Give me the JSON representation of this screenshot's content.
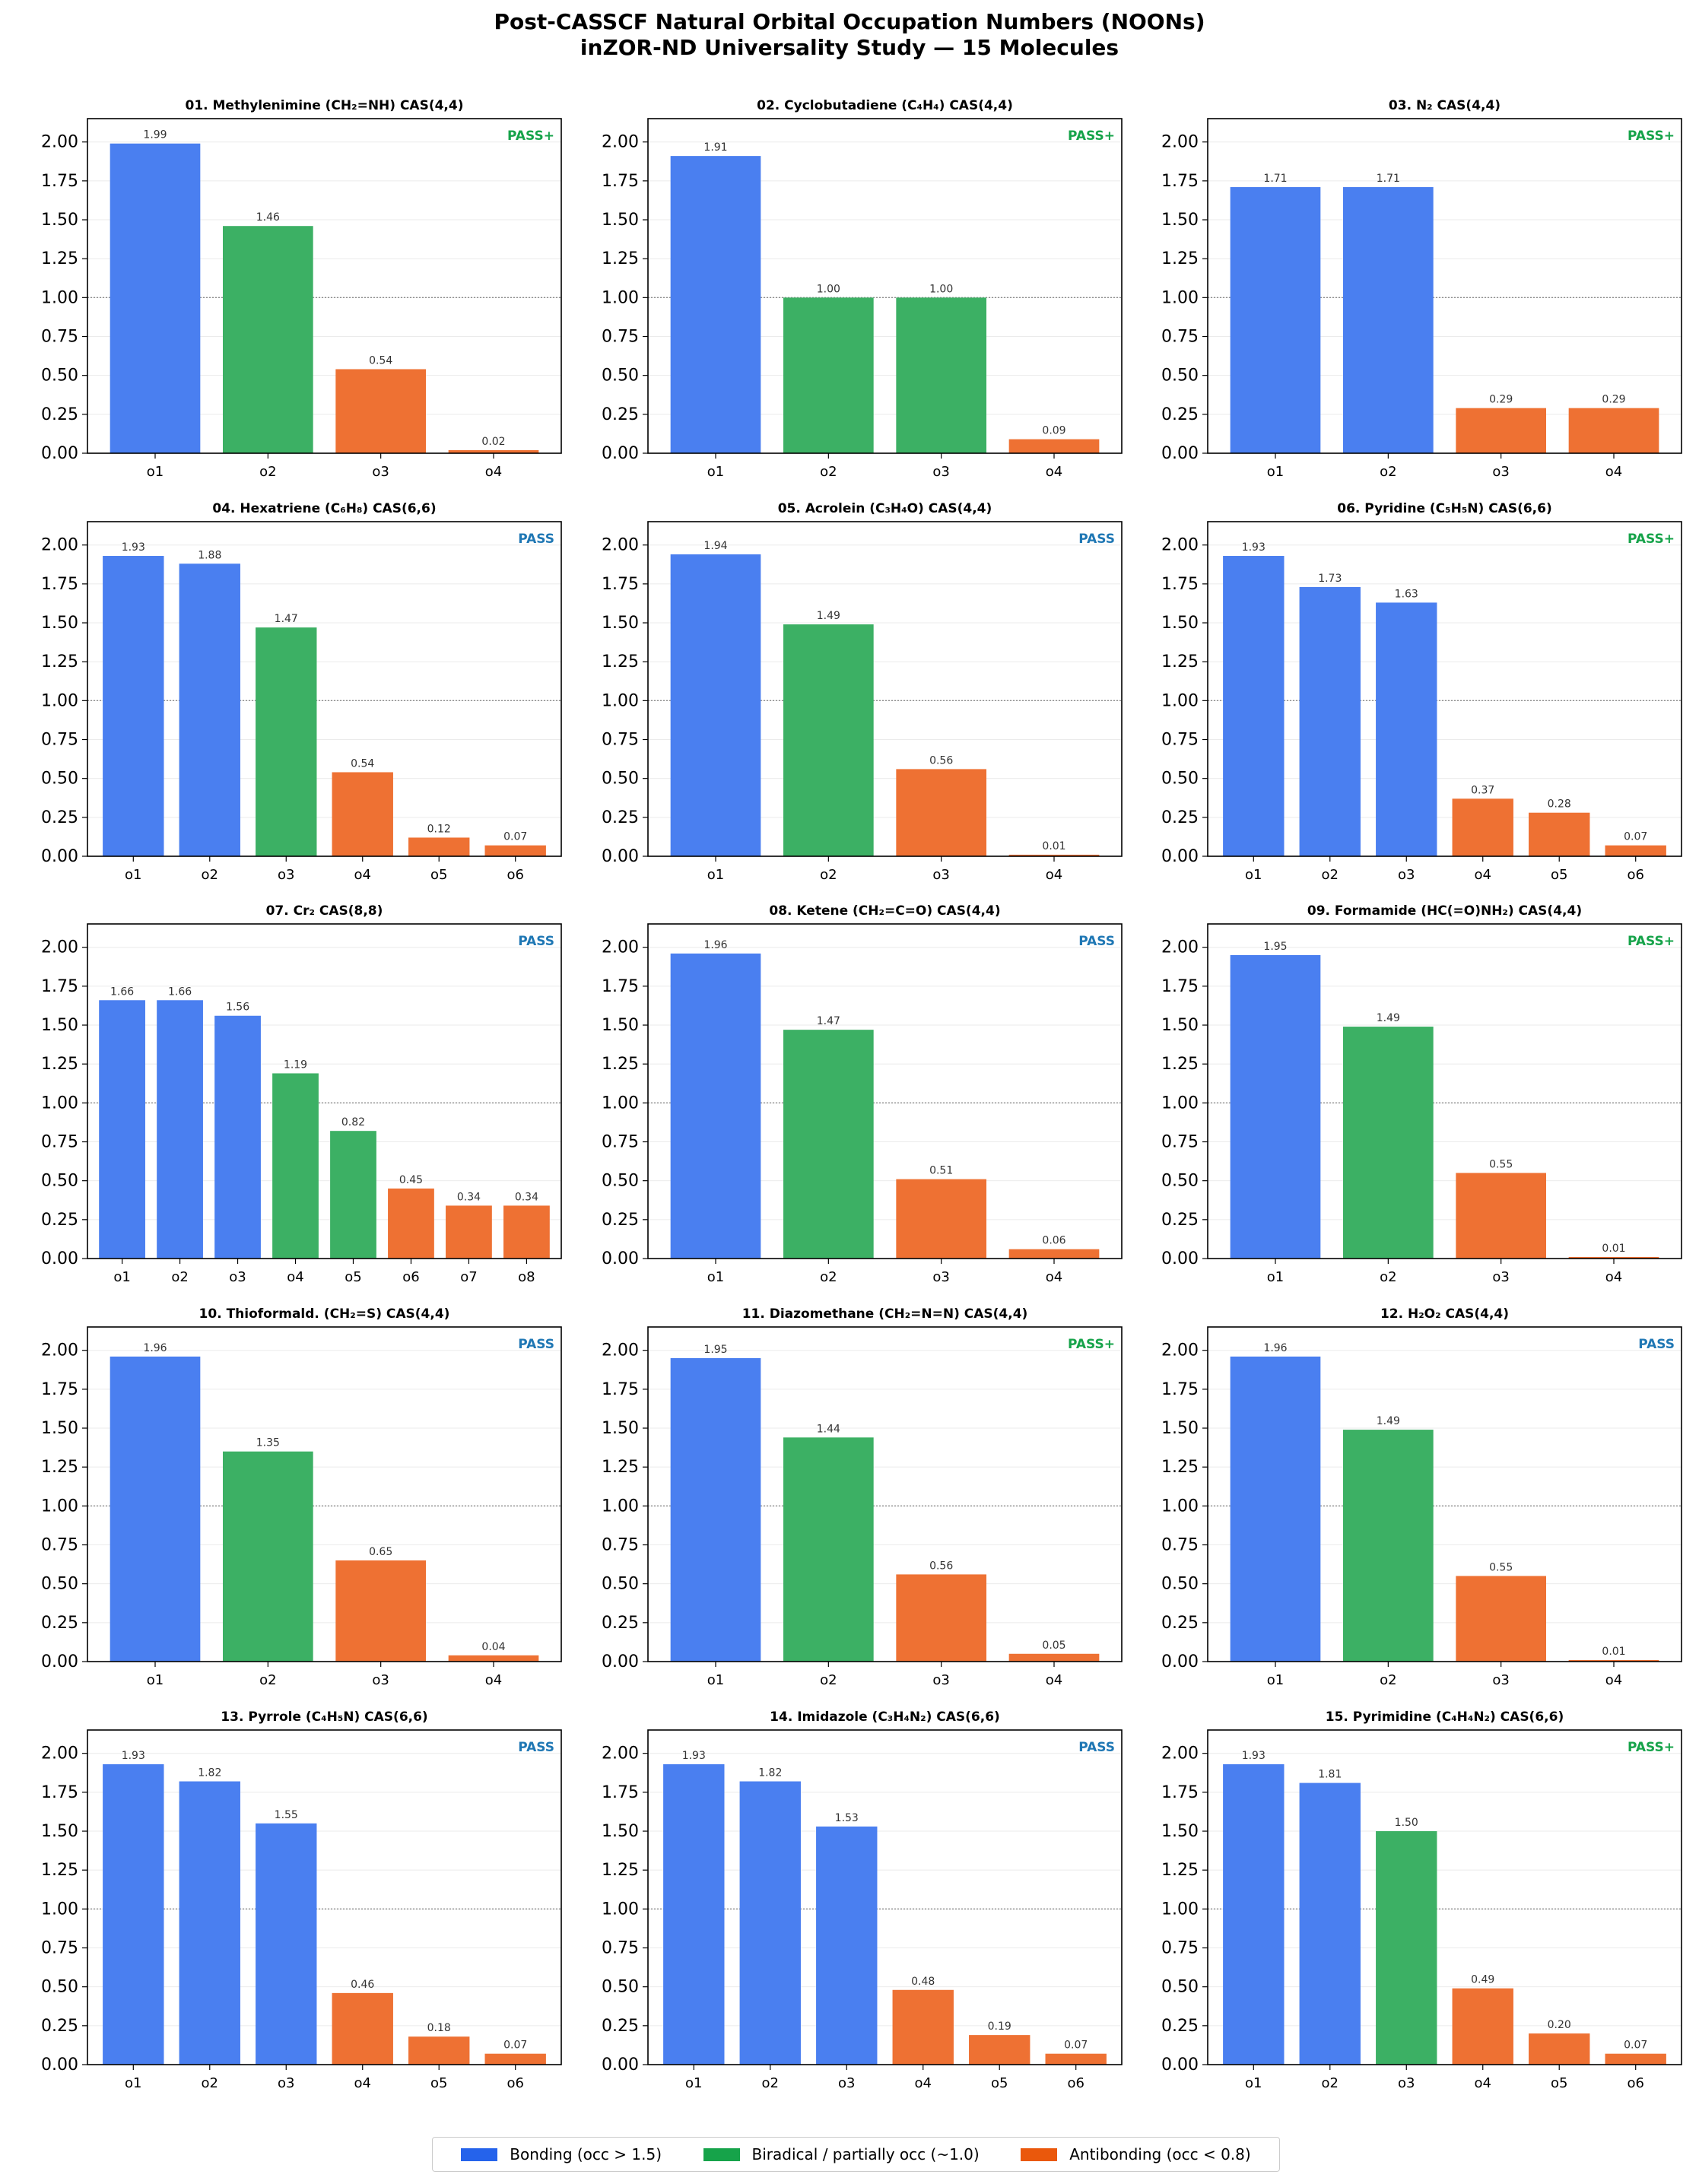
{
  "title_line1": "Post-CASSCF Natural Orbital Occupation Numbers (NOONs)",
  "title_line2": "inZOR-ND Universality Study — 15 Molecules",
  "colors": {
    "bonding": "#2563eb",
    "biradical": "#16a34a",
    "antibonding": "#ea580c",
    "pass": "#1f77b4",
    "pass_plus": "#16a34a"
  },
  "legend": [
    {
      "label": "Bonding (occ > 1.5)",
      "color": "#2563eb"
    },
    {
      "label": "Biradical / partially occ (~1.0)",
      "color": "#16a34a"
    },
    {
      "label": "Antibonding (occ < 0.8)",
      "color": "#ea580c"
    }
  ],
  "chart_data": [
    {
      "type": "bar",
      "title": "01. Methylenimine (CH₂=NH) CAS(4,4)",
      "badge": "PASS+",
      "categories": [
        "o1",
        "o2",
        "o3",
        "o4"
      ],
      "values": [
        1.99,
        1.46,
        0.54,
        0.02
      ],
      "classes": [
        "bonding",
        "biradical",
        "antibonding",
        "antibonding"
      ],
      "labels": [
        "1.99",
        "1.46",
        "0.54",
        "0.02"
      ],
      "ylim": [
        0,
        2.15
      ],
      "yticks": [
        "0.00",
        "0.25",
        "0.50",
        "0.75",
        "1.00",
        "1.25",
        "1.50",
        "1.75",
        "2.00"
      ],
      "reference_line": 1.0
    },
    {
      "type": "bar",
      "title": "02. Cyclobutadiene (C₄H₄) CAS(4,4)",
      "badge": "PASS+",
      "categories": [
        "o1",
        "o2",
        "o3",
        "o4"
      ],
      "values": [
        1.91,
        1.0,
        1.0,
        0.09
      ],
      "classes": [
        "bonding",
        "biradical",
        "biradical",
        "antibonding"
      ],
      "labels": [
        "1.91",
        "1.00",
        "1.00",
        "0.09"
      ],
      "ylim": [
        0,
        2.15
      ],
      "yticks": [
        "0.00",
        "0.25",
        "0.50",
        "0.75",
        "1.00",
        "1.25",
        "1.50",
        "1.75",
        "2.00"
      ],
      "reference_line": 1.0
    },
    {
      "type": "bar",
      "title": "03. N₂ CAS(4,4)",
      "badge": "PASS+",
      "categories": [
        "o1",
        "o2",
        "o3",
        "o4"
      ],
      "values": [
        1.71,
        1.71,
        0.29,
        0.29
      ],
      "classes": [
        "bonding",
        "bonding",
        "antibonding",
        "antibonding"
      ],
      "labels": [
        "1.71",
        "1.71",
        "0.29",
        "0.29"
      ],
      "ylim": [
        0,
        2.15
      ],
      "yticks": [
        "0.00",
        "0.25",
        "0.50",
        "0.75",
        "1.00",
        "1.25",
        "1.50",
        "1.75",
        "2.00"
      ],
      "reference_line": 1.0
    },
    {
      "type": "bar",
      "title": "04. Hexatriene (C₆H₈) CAS(6,6)",
      "badge": "PASS",
      "categories": [
        "o1",
        "o2",
        "o3",
        "o4",
        "o5",
        "o6"
      ],
      "values": [
        1.93,
        1.88,
        1.47,
        0.54,
        0.12,
        0.07
      ],
      "classes": [
        "bonding",
        "bonding",
        "biradical",
        "antibonding",
        "antibonding",
        "antibonding"
      ],
      "labels": [
        "1.93",
        "1.88",
        "1.47",
        "0.54",
        "0.12",
        "0.07"
      ],
      "ylim": [
        0,
        2.15
      ],
      "yticks": [
        "0.00",
        "0.25",
        "0.50",
        "0.75",
        "1.00",
        "1.25",
        "1.50",
        "1.75",
        "2.00"
      ],
      "reference_line": 1.0
    },
    {
      "type": "bar",
      "title": "05. Acrolein (C₃H₄O) CAS(4,4)",
      "badge": "PASS",
      "categories": [
        "o1",
        "o2",
        "o3",
        "o4"
      ],
      "values": [
        1.94,
        1.49,
        0.56,
        0.01
      ],
      "classes": [
        "bonding",
        "biradical",
        "antibonding",
        "antibonding"
      ],
      "labels": [
        "1.94",
        "1.49",
        "0.56",
        "0.01"
      ],
      "ylim": [
        0,
        2.15
      ],
      "yticks": [
        "0.00",
        "0.25",
        "0.50",
        "0.75",
        "1.00",
        "1.25",
        "1.50",
        "1.75",
        "2.00"
      ],
      "reference_line": 1.0
    },
    {
      "type": "bar",
      "title": "06. Pyridine (C₅H₅N) CAS(6,6)",
      "badge": "PASS+",
      "categories": [
        "o1",
        "o2",
        "o3",
        "o4",
        "o5",
        "o6"
      ],
      "values": [
        1.93,
        1.73,
        1.63,
        0.37,
        0.28,
        0.07
      ],
      "classes": [
        "bonding",
        "bonding",
        "bonding",
        "antibonding",
        "antibonding",
        "antibonding"
      ],
      "labels": [
        "1.93",
        "1.73",
        "1.63",
        "0.37",
        "0.28",
        "0.07"
      ],
      "ylim": [
        0,
        2.15
      ],
      "yticks": [
        "0.00",
        "0.25",
        "0.50",
        "0.75",
        "1.00",
        "1.25",
        "1.50",
        "1.75",
        "2.00"
      ],
      "reference_line": 1.0
    },
    {
      "type": "bar",
      "title": "07. Cr₂ CAS(8,8)",
      "badge": "PASS",
      "categories": [
        "o1",
        "o2",
        "o3",
        "o4",
        "o5",
        "o6",
        "o7",
        "o8"
      ],
      "values": [
        1.66,
        1.66,
        1.56,
        1.19,
        0.82,
        0.45,
        0.34,
        0.34
      ],
      "classes": [
        "bonding",
        "bonding",
        "bonding",
        "biradical",
        "biradical",
        "antibonding",
        "antibonding",
        "antibonding"
      ],
      "labels": [
        "1.66",
        "1.66",
        "1.56",
        "1.19",
        "0.82",
        "0.45",
        "0.34",
        "0.34"
      ],
      "ylim": [
        0,
        2.15
      ],
      "yticks": [
        "0.00",
        "0.25",
        "0.50",
        "0.75",
        "1.00",
        "1.25",
        "1.50",
        "1.75",
        "2.00"
      ],
      "reference_line": 1.0
    },
    {
      "type": "bar",
      "title": "08. Ketene (CH₂=C=O) CAS(4,4)",
      "badge": "PASS",
      "categories": [
        "o1",
        "o2",
        "o3",
        "o4"
      ],
      "values": [
        1.96,
        1.47,
        0.51,
        0.06
      ],
      "classes": [
        "bonding",
        "biradical",
        "antibonding",
        "antibonding"
      ],
      "labels": [
        "1.96",
        "1.47",
        "0.51",
        "0.06"
      ],
      "ylim": [
        0,
        2.15
      ],
      "yticks": [
        "0.00",
        "0.25",
        "0.50",
        "0.75",
        "1.00",
        "1.25",
        "1.50",
        "1.75",
        "2.00"
      ],
      "reference_line": 1.0
    },
    {
      "type": "bar",
      "title": "09. Formamide (HC(=O)NH₂) CAS(4,4)",
      "badge": "PASS+",
      "categories": [
        "o1",
        "o2",
        "o3",
        "o4"
      ],
      "values": [
        1.95,
        1.49,
        0.55,
        0.01
      ],
      "classes": [
        "bonding",
        "biradical",
        "antibonding",
        "antibonding"
      ],
      "labels": [
        "1.95",
        "1.49",
        "0.55",
        "0.01"
      ],
      "ylim": [
        0,
        2.15
      ],
      "yticks": [
        "0.00",
        "0.25",
        "0.50",
        "0.75",
        "1.00",
        "1.25",
        "1.50",
        "1.75",
        "2.00"
      ],
      "reference_line": 1.0
    },
    {
      "type": "bar",
      "title": "10. Thioformald. (CH₂=S) CAS(4,4)",
      "badge": "PASS",
      "categories": [
        "o1",
        "o2",
        "o3",
        "o4"
      ],
      "values": [
        1.96,
        1.35,
        0.65,
        0.04
      ],
      "classes": [
        "bonding",
        "biradical",
        "antibonding",
        "antibonding"
      ],
      "labels": [
        "1.96",
        "1.35",
        "0.65",
        "0.04"
      ],
      "ylim": [
        0,
        2.15
      ],
      "yticks": [
        "0.00",
        "0.25",
        "0.50",
        "0.75",
        "1.00",
        "1.25",
        "1.50",
        "1.75",
        "2.00"
      ],
      "reference_line": 1.0
    },
    {
      "type": "bar",
      "title": "11. Diazomethane (CH₂=N=N) CAS(4,4)",
      "badge": "PASS+",
      "categories": [
        "o1",
        "o2",
        "o3",
        "o4"
      ],
      "values": [
        1.95,
        1.44,
        0.56,
        0.05
      ],
      "classes": [
        "bonding",
        "biradical",
        "antibonding",
        "antibonding"
      ],
      "labels": [
        "1.95",
        "1.44",
        "0.56",
        "0.05"
      ],
      "ylim": [
        0,
        2.15
      ],
      "yticks": [
        "0.00",
        "0.25",
        "0.50",
        "0.75",
        "1.00",
        "1.25",
        "1.50",
        "1.75",
        "2.00"
      ],
      "reference_line": 1.0
    },
    {
      "type": "bar",
      "title": "12. H₂O₂ CAS(4,4)",
      "badge": "PASS",
      "categories": [
        "o1",
        "o2",
        "o3",
        "o4"
      ],
      "values": [
        1.96,
        1.49,
        0.55,
        0.01
      ],
      "classes": [
        "bonding",
        "biradical",
        "antibonding",
        "antibonding"
      ],
      "labels": [
        "1.96",
        "1.49",
        "0.55",
        "0.01"
      ],
      "ylim": [
        0,
        2.15
      ],
      "yticks": [
        "0.00",
        "0.25",
        "0.50",
        "0.75",
        "1.00",
        "1.25",
        "1.50",
        "1.75",
        "2.00"
      ],
      "reference_line": 1.0
    },
    {
      "type": "bar",
      "title": "13. Pyrrole (C₄H₅N) CAS(6,6)",
      "badge": "PASS",
      "categories": [
        "o1",
        "o2",
        "o3",
        "o4",
        "o5",
        "o6"
      ],
      "values": [
        1.93,
        1.82,
        1.55,
        0.46,
        0.18,
        0.07
      ],
      "classes": [
        "bonding",
        "bonding",
        "bonding",
        "antibonding",
        "antibonding",
        "antibonding"
      ],
      "labels": [
        "1.93",
        "1.82",
        "1.55",
        "0.46",
        "0.18",
        "0.07"
      ],
      "ylim": [
        0,
        2.15
      ],
      "yticks": [
        "0.00",
        "0.25",
        "0.50",
        "0.75",
        "1.00",
        "1.25",
        "1.50",
        "1.75",
        "2.00"
      ],
      "reference_line": 1.0
    },
    {
      "type": "bar",
      "title": "14. Imidazole (C₃H₄N₂) CAS(6,6)",
      "badge": "PASS",
      "categories": [
        "o1",
        "o2",
        "o3",
        "o4",
        "o5",
        "o6"
      ],
      "values": [
        1.93,
        1.82,
        1.53,
        0.48,
        0.19,
        0.07
      ],
      "classes": [
        "bonding",
        "bonding",
        "bonding",
        "antibonding",
        "antibonding",
        "antibonding"
      ],
      "labels": [
        "1.93",
        "1.82",
        "1.53",
        "0.48",
        "0.19",
        "0.07"
      ],
      "ylim": [
        0,
        2.15
      ],
      "yticks": [
        "0.00",
        "0.25",
        "0.50",
        "0.75",
        "1.00",
        "1.25",
        "1.50",
        "1.75",
        "2.00"
      ],
      "reference_line": 1.0
    },
    {
      "type": "bar",
      "title": "15. Pyrimidine (C₄H₄N₂) CAS(6,6)",
      "badge": "PASS+",
      "categories": [
        "o1",
        "o2",
        "o3",
        "o4",
        "o5",
        "o6"
      ],
      "values": [
        1.93,
        1.81,
        1.5,
        0.49,
        0.2,
        0.07
      ],
      "classes": [
        "bonding",
        "bonding",
        "biradical",
        "antibonding",
        "antibonding",
        "antibonding"
      ],
      "labels": [
        "1.93",
        "1.81",
        "1.50",
        "0.49",
        "0.20",
        "0.07"
      ],
      "ylim": [
        0,
        2.15
      ],
      "yticks": [
        "0.00",
        "0.25",
        "0.50",
        "0.75",
        "1.00",
        "1.25",
        "1.50",
        "1.75",
        "2.00"
      ],
      "reference_line": 1.0
    }
  ]
}
